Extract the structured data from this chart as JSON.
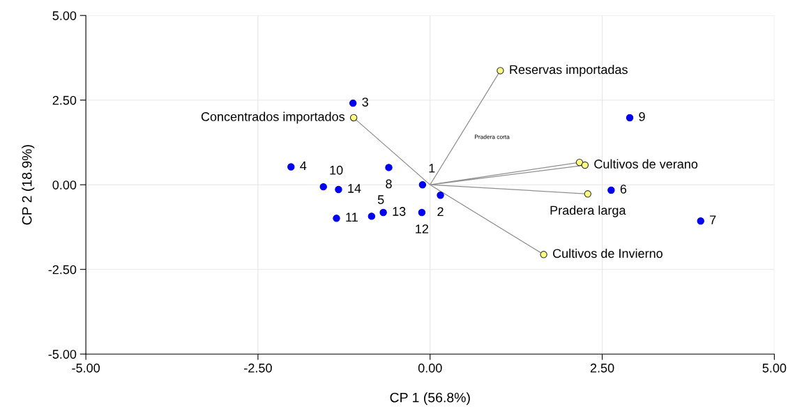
{
  "chart_data": {
    "type": "scatter",
    "xlabel": "CP 1 (56.8%)",
    "ylabel": "CP 2 (18.9%)",
    "xlim": [
      -5,
      5
    ],
    "ylim": [
      -5,
      5
    ],
    "xticks": [
      {
        "value": -5,
        "label": "-5.00"
      },
      {
        "value": -2.5,
        "label": "-2.50"
      },
      {
        "value": 0,
        "label": "0.00"
      },
      {
        "value": 2.5,
        "label": "2.50"
      },
      {
        "value": 5,
        "label": "5.00"
      }
    ],
    "yticks": [
      {
        "value": -5,
        "label": "-5.00"
      },
      {
        "value": -2.5,
        "label": "-2.50"
      },
      {
        "value": 0,
        "label": "0.00"
      },
      {
        "value": 2.5,
        "label": "2.50"
      },
      {
        "value": 5,
        "label": "5.00"
      }
    ],
    "grid": true,
    "series": [
      {
        "type": "line",
        "marker": "none",
        "color": "#909090",
        "x": [
          0,
          1.02,
          null,
          0,
          -1.11,
          null,
          0,
          2.17,
          null,
          0,
          2.25,
          null,
          0,
          2.29,
          null,
          0,
          1.65
        ],
        "values": [
          0,
          3.37,
          null,
          0,
          1.98,
          null,
          0,
          0.66,
          null,
          0,
          0.58,
          null,
          0,
          -0.27,
          null,
          0,
          -2.06
        ]
      },
      {
        "marker": "circle",
        "color": "#ffff80",
        "x": [
          1.02,
          -1.11,
          2.17,
          2.25,
          2.29,
          1.65
        ],
        "values": [
          3.37,
          1.98,
          0.66,
          0.58,
          -0.27,
          -2.06
        ]
      },
      {
        "marker": "circle",
        "color": "#0000ee",
        "x": [
          -0.11,
          0.15,
          -1.12,
          -2.02,
          -0.85,
          2.63,
          3.93,
          -0.6,
          2.9,
          -1.55,
          -1.36,
          -0.12,
          -0.68,
          -1.33
        ],
        "values": [
          0.0,
          -0.31,
          2.41,
          0.53,
          -0.93,
          -0.16,
          -1.07,
          0.51,
          1.98,
          -0.06,
          -0.99,
          -0.82,
          -0.82,
          -0.14
        ]
      }
    ],
    "annotations": [
      {
        "text": "1",
        "x": -0.11,
        "y": 0.0
      },
      {
        "text": "2",
        "x": 0.15,
        "y": -0.31
      },
      {
        "text": "3",
        "x": -1.12,
        "y": 2.41
      },
      {
        "text": "4",
        "x": -2.02,
        "y": 0.53
      },
      {
        "text": "5",
        "x": -0.85,
        "y": -0.93
      },
      {
        "text": "6",
        "x": 2.63,
        "y": -0.16
      },
      {
        "text": "7",
        "x": 3.93,
        "y": -1.07
      },
      {
        "text": "8",
        "x": -0.6,
        "y": 0.51
      },
      {
        "text": "9",
        "x": 2.9,
        "y": 1.98
      },
      {
        "text": "10",
        "x": -1.55,
        "y": -0.06
      },
      {
        "text": "11",
        "x": -1.36,
        "y": -0.99
      },
      {
        "text": "12",
        "x": -0.12,
        "y": -0.82
      },
      {
        "text": "13",
        "x": -0.68,
        "y": -0.82
      },
      {
        "text": "14",
        "x": -1.33,
        "y": -0.14
      },
      {
        "text": "Reservas importadas",
        "x": 1.02,
        "y": 3.37
      },
      {
        "text": "Concentrados importados",
        "x": -1.11,
        "y": 1.98
      },
      "Pradera corta",
      {
        "text": "Cultivos de verano",
        "x": 2.25,
        "y": 0.58
      },
      {
        "text": "Pradera larga",
        "x": 2.29,
        "y": -0.27
      },
      {
        "text": "Cultivos de Invierno",
        "x": 1.65,
        "y": -2.06
      }
    ]
  }
}
